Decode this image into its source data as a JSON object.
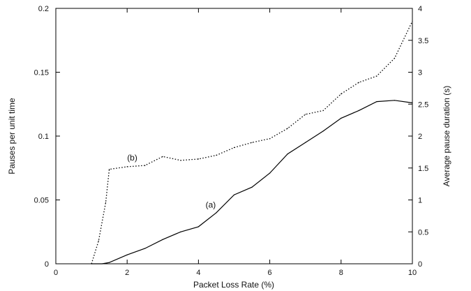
{
  "chart_data": {
    "type": "line",
    "title": "",
    "xlabel": "Packet Loss Rate (%)",
    "ylabel": "Pauses per unit time",
    "y2label": "Average pause duration (s)",
    "xlim": [
      0,
      10
    ],
    "ylim": [
      0,
      0.2
    ],
    "y2lim": [
      0,
      4
    ],
    "x_ticks": [
      "0",
      "2",
      "4",
      "6",
      "8",
      "10"
    ],
    "y_ticks": [
      "0",
      "0.05",
      "0.1",
      "0.15",
      "0.2"
    ],
    "y2_ticks": [
      "0",
      "0.5",
      "1",
      "1.5",
      "2",
      "2.5",
      "3",
      "3.5",
      "4"
    ],
    "grid": false,
    "series": [
      {
        "label": "(a)",
        "axis": "left",
        "style": "solid",
        "label_at": [
          4.2,
          0.044
        ],
        "x": [
          1.0,
          1.3,
          1.5,
          2.0,
          2.5,
          3.0,
          3.5,
          4.0,
          4.5,
          5.0,
          5.5,
          6.0,
          6.5,
          7.0,
          7.5,
          8.0,
          8.5,
          9.0,
          9.5,
          10.0
        ],
        "y": [
          0,
          0,
          0.001,
          0.007,
          0.012,
          0.019,
          0.025,
          0.029,
          0.04,
          0.054,
          0.06,
          0.071,
          0.086,
          0.095,
          0.104,
          0.114,
          0.12,
          0.127,
          0.128,
          0.126
        ]
      },
      {
        "label": "(b)",
        "axis": "left",
        "style": "dotted",
        "label_at": [
          2.0,
          0.081
        ],
        "x": [
          1.0,
          1.2,
          1.4,
          1.5,
          2.0,
          2.5,
          3.0,
          3.5,
          4.0,
          4.5,
          5.0,
          5.5,
          6.0,
          6.5,
          7.0,
          7.5,
          8.0,
          8.5,
          9.0,
          9.5,
          10.0
        ],
        "y": [
          0,
          0.018,
          0.048,
          0.074,
          0.076,
          0.077,
          0.084,
          0.081,
          0.082,
          0.085,
          0.091,
          0.095,
          0.098,
          0.106,
          0.117,
          0.12,
          0.133,
          0.142,
          0.147,
          0.161,
          0.19
        ]
      }
    ]
  }
}
